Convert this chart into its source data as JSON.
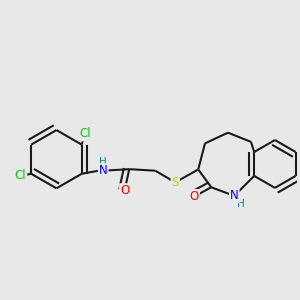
{
  "background_color": "#e8e8e8",
  "bond_color": "#1a1a1a",
  "line_width": 1.5,
  "atom_colors": {
    "Cl": "#00cc00",
    "N": "#0000ff",
    "O": "#ff0000",
    "S": "#cccc00",
    "H": "#008888",
    "C": "#1a1a1a"
  },
  "font_size": 8.5
}
